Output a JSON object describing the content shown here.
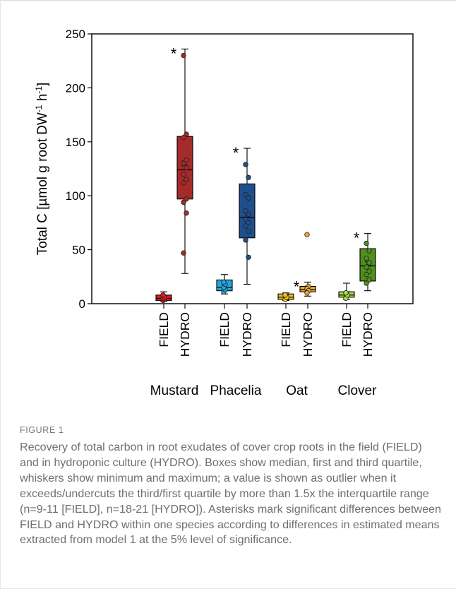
{
  "figure": {
    "label": "FIGURE 1",
    "caption": "Recovery of total carbon in root exudates of cover crop roots in the field (FIELD) and in hydroponic culture (HYDRO). Boxes show median, first and third quartile, whiskers show minimum and maximum; a value is shown as outlier when it exceeds/undercuts the third/first quartile by more than 1.5x the interquartile range (n=9-11 [FIELD], n=18-21 [HYDRO]). Asterisks mark significant differences between FIELD and HYDRO within one species according to differences in estimated means extracted from model 1 at the 5% level of significance."
  },
  "chart_data": {
    "type": "box",
    "ylabel": "Total C [µmol g root DW⁻¹ h⁻¹]",
    "ylim": [
      0,
      250
    ],
    "yticks": [
      0,
      50,
      100,
      150,
      200,
      250
    ],
    "groups": [
      {
        "species": "Mustard",
        "boxes": [
          {
            "label": "FIELD",
            "color": "#e31a1c",
            "min": 2,
            "q1": 3,
            "median": 5,
            "q3": 8,
            "max": 11,
            "mean": 5,
            "significant": false,
            "points": [
              3,
              4,
              5,
              6,
              8
            ]
          },
          {
            "label": "HYDRO",
            "color": "#a52a2a",
            "min": 28,
            "q1": 97,
            "median": 124,
            "q3": 155,
            "max": 236,
            "mean": 130,
            "significant": true,
            "points": [
              230,
              157,
              154,
              133,
              130,
              126,
              120,
              115,
              112,
              97,
              94,
              84,
              47
            ]
          }
        ]
      },
      {
        "species": "Phacelia",
        "boxes": [
          {
            "label": "FIELD",
            "color": "#1fa8dc",
            "min": 9,
            "q1": 12,
            "median": 15,
            "q3": 22,
            "max": 27,
            "mean": 16,
            "significant": false,
            "points": [
              11,
              13,
              15,
              18,
              20
            ]
          },
          {
            "label": "HYDRO",
            "color": "#1f4e8c",
            "min": 18,
            "q1": 61,
            "median": 80,
            "q3": 111,
            "max": 144,
            "mean": 82,
            "significant": true,
            "points": [
              129,
              117,
              101,
              98,
              86,
              83,
              78,
              75,
              72,
              67,
              59,
              43
            ]
          }
        ]
      },
      {
        "species": "Oat",
        "boxes": [
          {
            "label": "FIELD",
            "color": "#f0c419",
            "min": 3,
            "q1": 4,
            "median": 6,
            "q3": 9,
            "max": 10,
            "mean": 6,
            "significant": false,
            "points": [
              4,
              6,
              8
            ]
          },
          {
            "label": "HYDRO",
            "color": "#f0a830",
            "min": 7,
            "q1": 11,
            "median": 13,
            "q3": 16,
            "max": 20,
            "mean": 14,
            "significant": true,
            "points": [
              64,
              16,
              14,
              12,
              10
            ]
          }
        ]
      },
      {
        "species": "Clover",
        "boxes": [
          {
            "label": "FIELD",
            "color": "#a8e04a",
            "min": 4,
            "q1": 6,
            "median": 8,
            "q3": 11,
            "max": 19,
            "mean": 9,
            "significant": false,
            "points": [
              5,
              8,
              10
            ]
          },
          {
            "label": "HYDRO",
            "color": "#4f8f1e",
            "min": 12,
            "q1": 21,
            "median": 35,
            "q3": 51,
            "max": 65,
            "mean": 37,
            "significant": true,
            "points": [
              56,
              49,
              42,
              38,
              34,
              30,
              27,
              22,
              19
            ]
          }
        ]
      }
    ]
  }
}
